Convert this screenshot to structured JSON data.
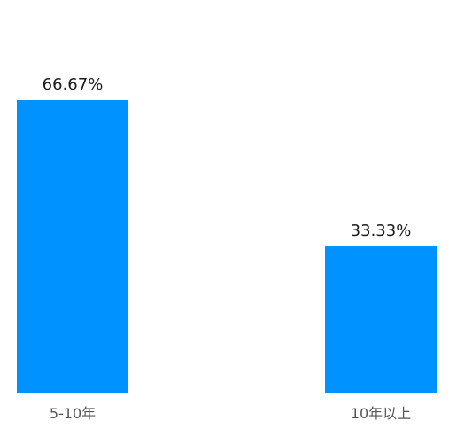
{
  "chart_data": {
    "type": "bar",
    "categories": [
      "5-10年",
      "10年以上"
    ],
    "values": [
      66.67,
      33.33
    ],
    "value_labels": [
      "66.67%",
      "33.33%"
    ],
    "title": "",
    "xlabel": "",
    "ylabel": "",
    "ylim": [
      0,
      100
    ],
    "grid": false,
    "legend": "none",
    "colors": {
      "bar": "#0093ff",
      "axis_line": "#c8d6e0",
      "label_text": "#1a1a1a",
      "tick_text": "#555555"
    }
  }
}
